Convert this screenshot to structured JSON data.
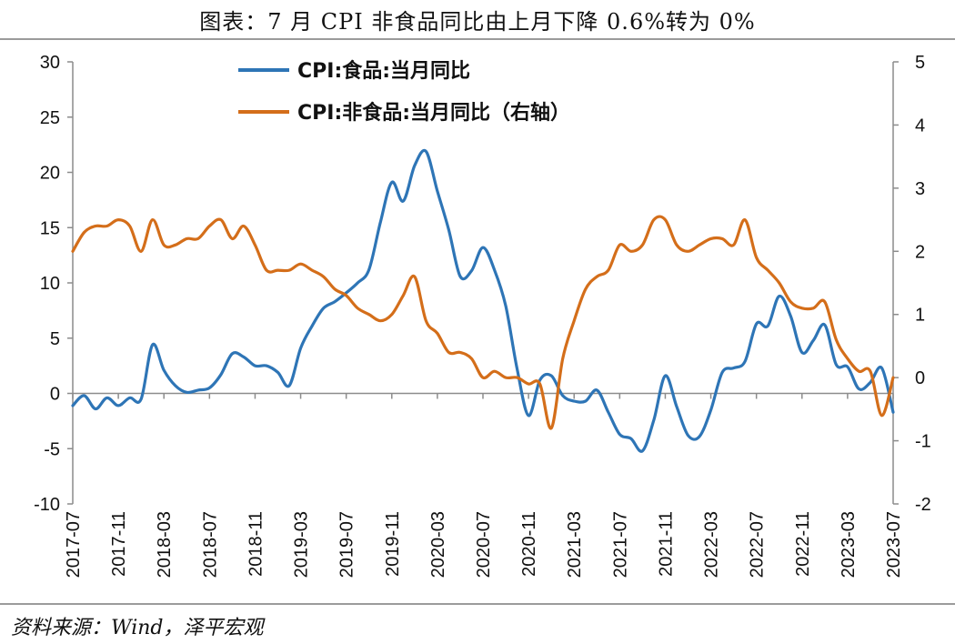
{
  "title": "图表：7 月 CPI 非食品同比由上月下降 0.6%转为 0%",
  "source": "资料来源：Wind，泽平宏观",
  "colors": {
    "food": "#2e75b6",
    "nonfood": "#d46e1a",
    "axis": "#8c8c8c"
  },
  "chart_data": {
    "type": "line",
    "x": [
      "2017-07",
      "2017-08",
      "2017-09",
      "2017-10",
      "2017-11",
      "2017-12",
      "2018-01",
      "2018-02",
      "2018-03",
      "2018-04",
      "2018-05",
      "2018-06",
      "2018-07",
      "2018-08",
      "2018-09",
      "2018-10",
      "2018-11",
      "2018-12",
      "2019-01",
      "2019-02",
      "2019-03",
      "2019-04",
      "2019-05",
      "2019-06",
      "2019-07",
      "2019-08",
      "2019-09",
      "2019-10",
      "2019-11",
      "2019-12",
      "2020-01",
      "2020-02",
      "2020-03",
      "2020-04",
      "2020-05",
      "2020-06",
      "2020-07",
      "2020-08",
      "2020-09",
      "2020-10",
      "2020-11",
      "2020-12",
      "2021-01",
      "2021-02",
      "2021-03",
      "2021-04",
      "2021-05",
      "2021-06",
      "2021-07",
      "2021-08",
      "2021-09",
      "2021-10",
      "2021-11",
      "2021-12",
      "2022-01",
      "2022-02",
      "2022-03",
      "2022-04",
      "2022-05",
      "2022-06",
      "2022-07",
      "2022-08",
      "2022-09",
      "2022-10",
      "2022-11",
      "2022-12",
      "2023-01",
      "2023-02",
      "2023-03",
      "2023-04",
      "2023-05",
      "2023-06",
      "2023-07"
    ],
    "x_tick_labels": [
      "2017-07",
      "2017-11",
      "2018-03",
      "2018-07",
      "2018-11",
      "2019-03",
      "2019-07",
      "2019-11",
      "2020-03",
      "2020-07",
      "2020-11",
      "2021-03",
      "2021-07",
      "2021-11",
      "2022-03",
      "2022-07",
      "2022-11",
      "2023-03",
      "2023-07"
    ],
    "left_axis": {
      "ylim": [
        -10,
        30
      ],
      "ticks": [
        -10,
        -5,
        0,
        5,
        10,
        15,
        20,
        25,
        30
      ]
    },
    "right_axis": {
      "ylim": [
        -2,
        5
      ],
      "ticks": [
        -2,
        -1,
        0,
        1,
        2,
        3,
        4,
        5
      ]
    },
    "legend_position": "top-center",
    "series": [
      {
        "name": "CPI:食品:当月同比",
        "axis": "left",
        "color": "#2e75b6",
        "values": [
          -1.1,
          -0.2,
          -1.4,
          -0.4,
          -1.1,
          -0.4,
          -0.5,
          4.4,
          2.1,
          0.7,
          0.1,
          0.3,
          0.5,
          1.7,
          3.6,
          3.3,
          2.5,
          2.5,
          1.9,
          0.7,
          4.1,
          6.1,
          7.7,
          8.3,
          9.1,
          10.0,
          11.2,
          15.5,
          19.1,
          17.4,
          20.6,
          21.9,
          18.3,
          14.8,
          10.6,
          11.1,
          13.2,
          11.2,
          7.9,
          2.2,
          -2.0,
          1.2,
          1.6,
          -0.2,
          -0.7,
          -0.7,
          0.3,
          -1.7,
          -3.7,
          -4.1,
          -5.2,
          -2.4,
          1.6,
          -1.2,
          -3.8,
          -3.9,
          -1.5,
          1.9,
          2.3,
          2.9,
          6.3,
          6.1,
          8.8,
          7.0,
          3.7,
          4.8,
          6.2,
          2.6,
          2.4,
          0.4,
          1.0,
          2.3,
          -1.7
        ]
      },
      {
        "name": "CPI:非食品:当月同比（右轴）",
        "axis": "right",
        "color": "#d46e1a",
        "values": [
          2.0,
          2.3,
          2.4,
          2.4,
          2.5,
          2.4,
          2.0,
          2.5,
          2.1,
          2.1,
          2.2,
          2.2,
          2.4,
          2.5,
          2.2,
          2.4,
          2.1,
          1.7,
          1.7,
          1.7,
          1.8,
          1.7,
          1.6,
          1.4,
          1.3,
          1.1,
          1.0,
          0.9,
          1.0,
          1.3,
          1.6,
          0.9,
          0.7,
          0.4,
          0.4,
          0.3,
          0.0,
          0.1,
          0.0,
          0.0,
          -0.1,
          -0.1,
          -0.8,
          0.3,
          0.9,
          1.4,
          1.6,
          1.7,
          2.1,
          2.0,
          2.1,
          2.5,
          2.5,
          2.1,
          2.0,
          2.1,
          2.2,
          2.2,
          2.1,
          2.5,
          1.9,
          1.7,
          1.5,
          1.2,
          1.1,
          1.1,
          1.2,
          0.6,
          0.3,
          0.1,
          0.1,
          -0.6,
          0.0
        ]
      }
    ]
  }
}
